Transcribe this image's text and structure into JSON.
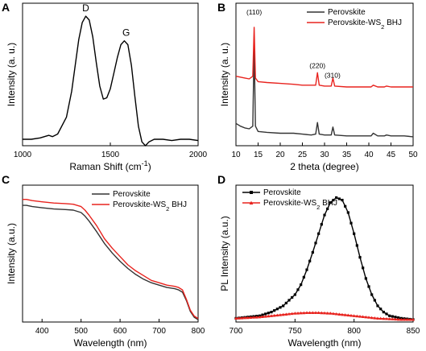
{
  "chart_data": [
    {
      "panel": "A",
      "type": "line",
      "xlabel": "Raman Shift (cm⁻¹)",
      "ylabel": "Intensity (a. u.)",
      "xlim": [
        1000,
        2000
      ],
      "ylim": [
        0,
        1.1
      ],
      "xticks": [
        "1000",
        "1500",
        "2000"
      ],
      "annotations": [
        {
          "text": "D",
          "x": 1360,
          "y": 1.0
        },
        {
          "text": "G",
          "x": 1590,
          "y": 0.81
        }
      ],
      "series": [
        {
          "color": "#000000",
          "x": [
            1000,
            1050,
            1100,
            1150,
            1170,
            1200,
            1250,
            1280,
            1300,
            1320,
            1340,
            1360,
            1380,
            1400,
            1420,
            1440,
            1460,
            1480,
            1500,
            1520,
            1540,
            1560,
            1580,
            1600,
            1620,
            1640,
            1660,
            1680,
            1700,
            1720,
            1750,
            1800,
            1850,
            1900,
            1950,
            2000
          ],
          "y": [
            0.05,
            0.05,
            0.06,
            0.08,
            0.07,
            0.09,
            0.22,
            0.42,
            0.62,
            0.82,
            0.95,
            1.0,
            0.97,
            0.84,
            0.64,
            0.46,
            0.36,
            0.37,
            0.44,
            0.56,
            0.68,
            0.78,
            0.81,
            0.78,
            0.62,
            0.38,
            0.15,
            0.03,
            0.0,
            0.03,
            0.05,
            0.05,
            0.04,
            0.05,
            0.05,
            0.04
          ]
        }
      ]
    },
    {
      "panel": "B",
      "type": "line",
      "xlabel": "2 theta (degree)",
      "ylabel": "Intensity (a. u.)",
      "xlim": [
        10,
        50
      ],
      "ylim": [
        0,
        1.6
      ],
      "xticks": [
        "10",
        "15",
        "20",
        "25",
        "30",
        "35",
        "40",
        "45",
        "50"
      ],
      "legend": {
        "position": "top-right",
        "entries": [
          "Perovskite",
          "Perovskite-WS₂ BHJ"
        ]
      },
      "annotations": [
        {
          "text": "(110)",
          "x": 14.1,
          "y": 1.42
        },
        {
          "text": "(220)",
          "x": 28.4,
          "y": 0.82
        },
        {
          "text": "(310)",
          "x": 31.8,
          "y": 0.71
        }
      ],
      "series": [
        {
          "name": "Perovskite",
          "color": "#333333",
          "x": [
            10,
            11,
            12,
            13,
            13.8,
            14.1,
            14.4,
            15,
            17,
            20,
            23,
            25,
            27,
            28,
            28.4,
            28.8,
            30,
            31.5,
            31.9,
            32.3,
            35,
            38,
            40.5,
            41,
            42,
            43.5,
            44,
            45,
            48,
            50
          ],
          "y": [
            0.25,
            0.22,
            0.2,
            0.19,
            0.22,
            1.14,
            0.22,
            0.16,
            0.15,
            0.14,
            0.14,
            0.13,
            0.12,
            0.13,
            0.26,
            0.13,
            0.12,
            0.12,
            0.21,
            0.12,
            0.11,
            0.11,
            0.11,
            0.14,
            0.11,
            0.11,
            0.12,
            0.11,
            0.11,
            0.1
          ]
        },
        {
          "name": "Perovskite-WS₂ BHJ",
          "color": "#e8231e",
          "x": [
            10,
            11,
            12,
            13,
            13.8,
            14.1,
            14.4,
            15,
            17,
            20,
            23,
            25,
            27,
            28,
            28.4,
            28.8,
            30,
            31.5,
            31.9,
            32.3,
            35,
            38,
            40.5,
            41,
            42,
            43.5,
            44,
            45,
            48,
            50
          ],
          "y": [
            0.78,
            0.77,
            0.76,
            0.75,
            0.78,
            1.33,
            0.76,
            0.72,
            0.71,
            0.7,
            0.69,
            0.68,
            0.68,
            0.68,
            0.82,
            0.68,
            0.67,
            0.67,
            0.76,
            0.67,
            0.66,
            0.66,
            0.66,
            0.68,
            0.66,
            0.66,
            0.67,
            0.66,
            0.66,
            0.66
          ]
        }
      ]
    },
    {
      "panel": "C",
      "type": "line",
      "xlabel": "Wavelength (nm)",
      "ylabel": "Intensity (a.u.)",
      "xlim": [
        350,
        800
      ],
      "ylim": [
        0,
        1.15
      ],
      "xticks": [
        "400",
        "500",
        "600",
        "700",
        "800"
      ],
      "legend": {
        "position": "top-right",
        "entries": [
          "Perovskite",
          "Perovskite-WS₂ BHJ"
        ]
      },
      "series": [
        {
          "name": "Perovskite",
          "color": "#333333",
          "x": [
            350,
            360,
            375,
            400,
            430,
            460,
            480,
            500,
            510,
            520,
            540,
            560,
            580,
            600,
            620,
            640,
            660,
            680,
            700,
            720,
            740,
            750,
            760,
            770,
            780,
            790,
            800
          ],
          "y": [
            0.98,
            0.98,
            0.97,
            0.96,
            0.95,
            0.945,
            0.94,
            0.92,
            0.89,
            0.85,
            0.76,
            0.66,
            0.58,
            0.51,
            0.45,
            0.4,
            0.36,
            0.33,
            0.31,
            0.29,
            0.28,
            0.27,
            0.25,
            0.18,
            0.09,
            0.04,
            0.02
          ]
        },
        {
          "name": "Perovskite-WS₂ BHJ",
          "color": "#e8231e",
          "x": [
            350,
            360,
            375,
            400,
            430,
            460,
            480,
            500,
            510,
            520,
            540,
            560,
            580,
            600,
            620,
            640,
            660,
            680,
            700,
            720,
            740,
            750,
            760,
            770,
            780,
            790,
            800
          ],
          "y": [
            1.03,
            1.03,
            1.02,
            1.01,
            1.0,
            0.995,
            0.99,
            0.97,
            0.94,
            0.9,
            0.81,
            0.7,
            0.62,
            0.55,
            0.48,
            0.43,
            0.39,
            0.35,
            0.33,
            0.31,
            0.3,
            0.29,
            0.27,
            0.19,
            0.1,
            0.05,
            0.03
          ]
        }
      ]
    },
    {
      "panel": "D",
      "type": "line",
      "xlabel": "Wavelength (nm)",
      "ylabel": "PL Intensity (a.u.)",
      "xlim": [
        700,
        850
      ],
      "ylim": [
        0,
        1.1
      ],
      "xticks": [
        "700",
        "750",
        "800",
        "850"
      ],
      "legend": {
        "position": "top-left",
        "entries": [
          "Perovskite",
          "Perovskite-WS₂ BHJ"
        ]
      },
      "series": [
        {
          "name": "Perovskite",
          "color": "#000000",
          "x": [
            700,
            710,
            720,
            730,
            740,
            750,
            755,
            760,
            765,
            770,
            775,
            780,
            785,
            790,
            795,
            800,
            805,
            810,
            815,
            820,
            825,
            830,
            840,
            850
          ],
          "y": [
            0.03,
            0.04,
            0.05,
            0.08,
            0.13,
            0.22,
            0.3,
            0.42,
            0.56,
            0.71,
            0.86,
            0.96,
            1.0,
            0.98,
            0.88,
            0.71,
            0.52,
            0.35,
            0.22,
            0.13,
            0.08,
            0.05,
            0.03,
            0.02
          ]
        },
        {
          "name": "Perovskite-WS₂ BHJ",
          "color": "#e8231e",
          "x": [
            700,
            710,
            720,
            730,
            740,
            750,
            760,
            770,
            780,
            790,
            800,
            810,
            820,
            830,
            840,
            850
          ],
          "y": [
            0.03,
            0.035,
            0.04,
            0.05,
            0.06,
            0.07,
            0.075,
            0.075,
            0.07,
            0.06,
            0.05,
            0.04,
            0.03,
            0.025,
            0.02,
            0.02
          ]
        }
      ]
    }
  ]
}
